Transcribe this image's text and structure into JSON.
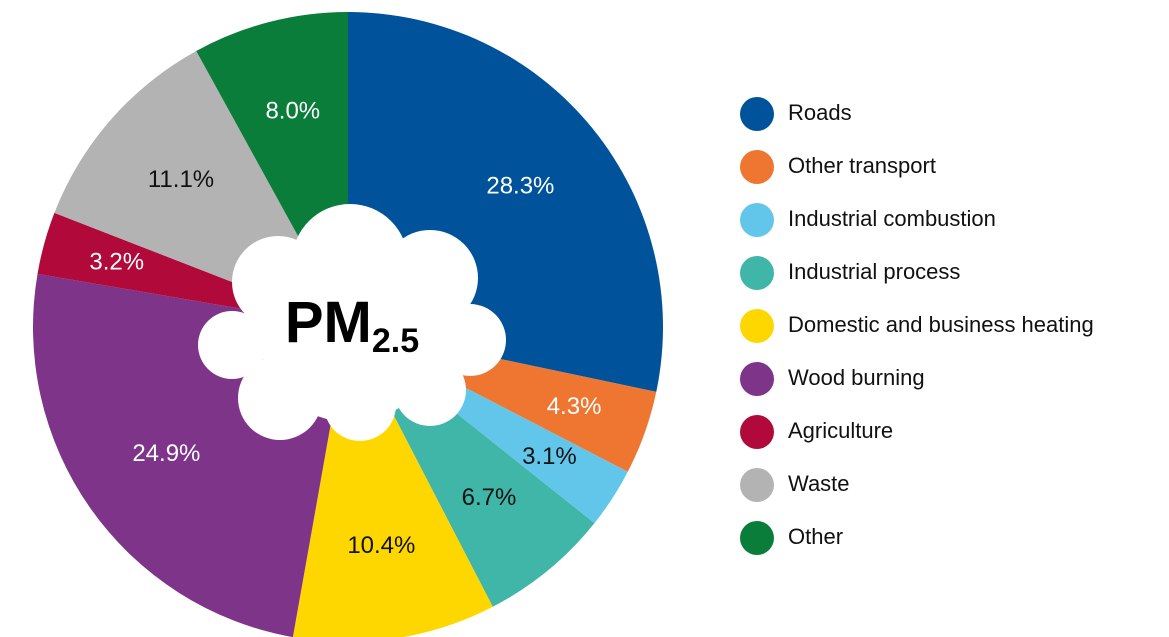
{
  "chart_data": {
    "type": "pie",
    "title": "PM",
    "title_subscript": "2.5",
    "categories": [
      "Roads",
      "Other transport",
      "Industrial combustion",
      "Industrial process",
      "Domestic and business heating",
      "Wood burning",
      "Agriculture",
      "Waste",
      "Other"
    ],
    "values": [
      28.3,
      4.3,
      3.1,
      6.7,
      10.4,
      24.9,
      3.2,
      11.1,
      8.0
    ],
    "value_labels": [
      "28.3%",
      "4.3%",
      "3.1%",
      "6.7%",
      "10.4%",
      "24.9%",
      "3.2%",
      "11.1%",
      "8.0%"
    ],
    "colors": [
      "#00539b",
      "#ef7630",
      "#62c6ea",
      "#3fb6a8",
      "#ffd700",
      "#7d3489",
      "#b0093a",
      "#b3b3b3",
      "#0a7d3a"
    ],
    "label_colors": [
      "#ffffff",
      "#ffffff",
      "#111111",
      "#111111",
      "#111111",
      "#ffffff",
      "#ffffff",
      "#111111",
      "#ffffff"
    ],
    "legend": "right"
  }
}
